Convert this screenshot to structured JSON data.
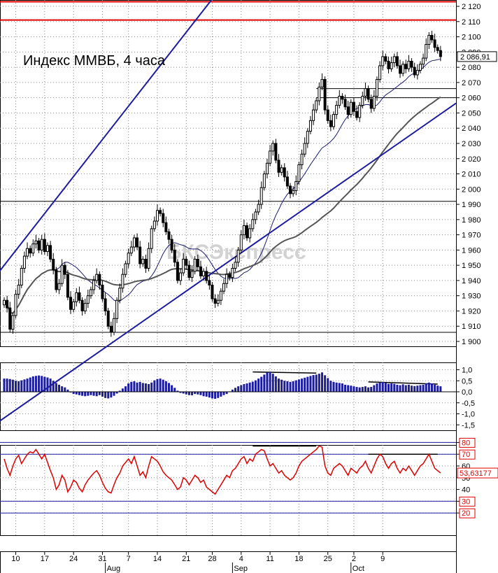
{
  "chart_data": {
    "type": "candlestick",
    "title": "Индекс ММВБ, 4 часа",
    "watermark": "БКСЭкспресс",
    "colors": {
      "candle": "#000000",
      "channel": "#1c1ca0",
      "level_red": "#e00000",
      "ma": "#555555",
      "macd": "#1c1ca0",
      "rsi": "#e00000"
    },
    "price_panel": {
      "ylim": [
        1900,
        2120
      ],
      "y_ticks": [
        "2 120",
        "2 110",
        "2 100",
        "2 090",
        "2 080",
        "2 070",
        "2 060",
        "2 050",
        "2 040",
        "2 030",
        "2 020",
        "2 010",
        "2 000",
        "1 990",
        "1 980",
        "1 970",
        "1 960",
        "1 950",
        "1 940",
        "1 930",
        "1 920",
        "1 910",
        "1 900"
      ],
      "last_price_label": "2 086,91",
      "horizontal_levels": [
        {
          "value": 2123,
          "color": "red"
        },
        {
          "value": 2111,
          "color": "red"
        },
        {
          "value": 2066,
          "color": "black"
        },
        {
          "value": 2060,
          "color": "black"
        },
        {
          "value": 1992,
          "color": "black"
        },
        {
          "value": 1906,
          "color": "black"
        }
      ],
      "close": [
        1927,
        1922,
        1908,
        1917,
        1931,
        1937,
        1948,
        1956,
        1961,
        1958,
        1964,
        1966,
        1960,
        1967,
        1959,
        1963,
        1954,
        1947,
        1934,
        1938,
        1950,
        1944,
        1929,
        1921,
        1926,
        1932,
        1927,
        1920,
        1925,
        1930,
        1934,
        1940,
        1944,
        1937,
        1928,
        1920,
        1910,
        1906,
        1915,
        1927,
        1935,
        1944,
        1951,
        1958,
        1962,
        1968,
        1962,
        1951,
        1954,
        1948,
        1961,
        1974,
        1979,
        1986,
        1984,
        1978,
        1972,
        1967,
        1960,
        1952,
        1940,
        1945,
        1954,
        1950,
        1942,
        1946,
        1954,
        1949,
        1943,
        1946,
        1940,
        1937,
        1928,
        1925,
        1927,
        1933,
        1938,
        1944,
        1942,
        1948,
        1952,
        1960,
        1970,
        1976,
        1968,
        1974,
        1980,
        1985,
        1990,
        2001,
        2010,
        2017,
        2025,
        2030,
        2019,
        2011,
        2014,
        2008,
        2002,
        1997,
        1999,
        2005,
        2016,
        2023,
        2030,
        2038,
        2045,
        2052,
        2058,
        2067,
        2072,
        2052,
        2045,
        2041,
        2049,
        2055,
        2061,
        2059,
        2054,
        2049,
        2057,
        2051,
        2047,
        2055,
        2061,
        2066,
        2059,
        2053,
        2061,
        2072,
        2081,
        2087,
        2084,
        2079,
        2083,
        2087,
        2081,
        2076,
        2082,
        2079,
        2084,
        2080,
        2075,
        2078,
        2082,
        2086,
        2095,
        2101,
        2098,
        2093,
        2091,
        2087
      ]
    },
    "macd_panel": {
      "ylim": [
        -1.5,
        1.0
      ],
      "y_ticks": [
        "1,0",
        "0,5",
        "0,0",
        "-0,5",
        "-1,0",
        "-1,5"
      ],
      "values": [
        0.6,
        0.6,
        0.58,
        0.55,
        0.5,
        0.48,
        0.52,
        0.56,
        0.6,
        0.65,
        0.7,
        0.72,
        0.74,
        0.72,
        0.68,
        0.65,
        0.6,
        0.5,
        0.4,
        0.32,
        0.25,
        0.2,
        0.1,
        0.0,
        -0.1,
        -0.12,
        -0.15,
        -0.18,
        -0.2,
        -0.18,
        -0.15,
        -0.18,
        -0.2,
        -0.15,
        -0.22,
        -0.28,
        -0.3,
        -0.26,
        -0.18,
        -0.08,
        0.05,
        0.15,
        0.25,
        0.38,
        0.45,
        0.48,
        0.42,
        0.45,
        0.4,
        0.38,
        0.35,
        0.42,
        0.52,
        0.58,
        0.6,
        0.55,
        0.48,
        0.4,
        0.3,
        0.18,
        0.05,
        -0.05,
        -0.08,
        -0.12,
        -0.15,
        -0.16,
        -0.1,
        -0.12,
        -0.15,
        -0.2,
        -0.22,
        -0.26,
        -0.3,
        -0.32,
        -0.28,
        -0.22,
        -0.15,
        -0.1,
        0.02,
        0.1,
        0.18,
        0.25,
        0.3,
        0.35,
        0.38,
        0.42,
        0.46,
        0.52,
        0.6,
        0.68,
        0.78,
        0.88,
        0.9,
        0.82,
        0.7,
        0.6,
        0.55,
        0.5,
        0.48,
        0.45,
        0.48,
        0.52,
        0.56,
        0.6,
        0.64,
        0.68,
        0.72,
        0.76,
        0.78,
        0.82,
        0.88,
        0.75,
        0.62,
        0.5,
        0.45,
        0.42,
        0.4,
        0.38,
        0.32,
        0.3,
        0.28,
        0.25,
        0.22,
        0.2,
        0.22,
        0.25,
        0.2,
        0.22,
        0.3,
        0.38,
        0.42,
        0.44,
        0.4,
        0.36,
        0.38,
        0.36,
        0.32,
        0.3,
        0.34,
        0.3,
        0.32,
        0.28,
        0.26,
        0.28,
        0.3,
        0.32,
        0.38,
        0.42,
        0.38,
        0.32,
        0.28,
        0.25
      ]
    },
    "rsi_panel": {
      "ylim": [
        10,
        85
      ],
      "y_ticks": [
        "80",
        "70",
        "60",
        "50",
        "40",
        "30",
        "20"
      ],
      "last_value_label": "53,63177",
      "levels": [
        80,
        70,
        30,
        20
      ],
      "values": [
        66,
        58,
        52,
        60,
        66,
        69,
        62,
        66,
        70,
        72,
        71,
        74,
        70,
        66,
        70,
        63,
        56,
        50,
        40,
        44,
        52,
        48,
        38,
        42,
        48,
        46,
        41,
        38,
        44,
        48,
        51,
        54,
        56,
        52,
        46,
        41,
        38,
        37,
        44,
        50,
        54,
        60,
        63,
        66,
        62,
        68,
        60,
        52,
        55,
        50,
        60,
        68,
        66,
        64,
        60,
        55,
        52,
        50,
        48,
        44,
        40,
        42,
        50,
        48,
        44,
        48,
        52,
        50,
        46,
        48,
        42,
        40,
        38,
        36,
        40,
        44,
        48,
        52,
        50,
        56,
        58,
        62,
        66,
        68,
        62,
        66,
        64,
        70,
        72,
        74,
        73,
        66,
        60,
        62,
        58,
        54,
        56,
        52,
        50,
        48,
        50,
        54,
        60,
        64,
        66,
        68,
        70,
        72,
        74,
        77,
        76,
        60,
        54,
        52,
        58,
        60,
        62,
        60,
        56,
        52,
        58,
        56,
        54,
        58,
        60,
        64,
        58,
        54,
        60,
        66,
        70,
        68,
        62,
        58,
        62,
        64,
        58,
        54,
        58,
        56,
        60,
        56,
        52,
        56,
        60,
        62,
        66,
        70,
        64,
        58,
        56,
        54
      ]
    },
    "x_axis": {
      "day_labels": [
        {
          "label": "10",
          "i": 4
        },
        {
          "label": "17",
          "i": 14
        },
        {
          "label": "24",
          "i": 24
        },
        {
          "label": "31",
          "i": 34
        },
        {
          "label": "7",
          "i": 43
        },
        {
          "label": "14",
          "i": 53
        },
        {
          "label": "21",
          "i": 63
        },
        {
          "label": "28",
          "i": 72
        },
        {
          "label": "4",
          "i": 82
        },
        {
          "label": "11",
          "i": 92
        },
        {
          "label": "18",
          "i": 102
        },
        {
          "label": "25",
          "i": 112
        },
        {
          "label": "2",
          "i": 121
        },
        {
          "label": "9",
          "i": 131
        }
      ],
      "month_labels": [
        {
          "label": "Aug",
          "i": 35
        },
        {
          "label": "Sep",
          "i": 79
        },
        {
          "label": "Oct",
          "i": 120
        }
      ]
    }
  }
}
